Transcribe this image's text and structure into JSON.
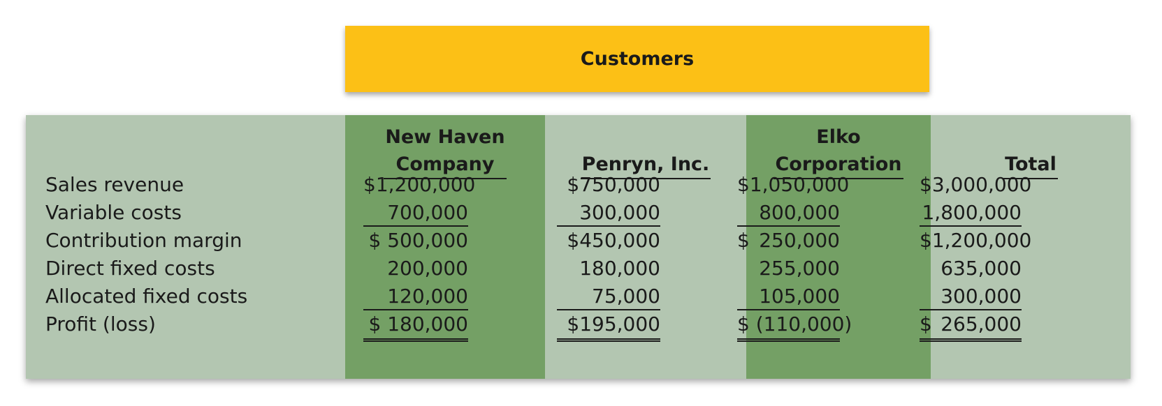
{
  "header": {
    "title": "Customers"
  },
  "columns": [
    {
      "header": "New Haven\nCompany"
    },
    {
      "header": "Penryn, Inc."
    },
    {
      "header": "Elko\nCorporation"
    },
    {
      "header": "Total"
    }
  ],
  "rows": [
    {
      "label": "Sales revenue",
      "cells": [
        {
          "value": "$1,200,000"
        },
        {
          "value": "$750,000"
        },
        {
          "value": "$1,050,000"
        },
        {
          "value": "$3,000,000"
        }
      ]
    },
    {
      "label": "Variable costs",
      "cells": [
        {
          "value": "700,000"
        },
        {
          "value": "300,000"
        },
        {
          "value": "800,000"
        },
        {
          "value": "1,800,000"
        }
      ]
    },
    {
      "label": "Contribution margin",
      "cells": [
        {
          "value": "$ 500,000"
        },
        {
          "value": "$450,000"
        },
        {
          "sym": "$",
          "value": "250,000"
        },
        {
          "value": "$1,200,000"
        }
      ]
    },
    {
      "label": "Direct fixed costs",
      "cells": [
        {
          "value": "200,000"
        },
        {
          "value": "180,000"
        },
        {
          "value": "255,000"
        },
        {
          "value": "635,000"
        }
      ]
    },
    {
      "label": "Allocated fixed costs",
      "cells": [
        {
          "value": "120,000"
        },
        {
          "value": "75,000"
        },
        {
          "value": "105,000"
        },
        {
          "value": "300,000"
        }
      ]
    },
    {
      "label": "Profit (loss)",
      "cells": [
        {
          "value": "$ 180,000"
        },
        {
          "value": "$195,000"
        },
        {
          "value": "$ (110,000)"
        },
        {
          "sym": "$",
          "value": "265,000"
        }
      ]
    }
  ],
  "colors": {
    "banner": "#fcc016",
    "panel": "#b3c6b1",
    "highlight_column": "#74a065"
  }
}
